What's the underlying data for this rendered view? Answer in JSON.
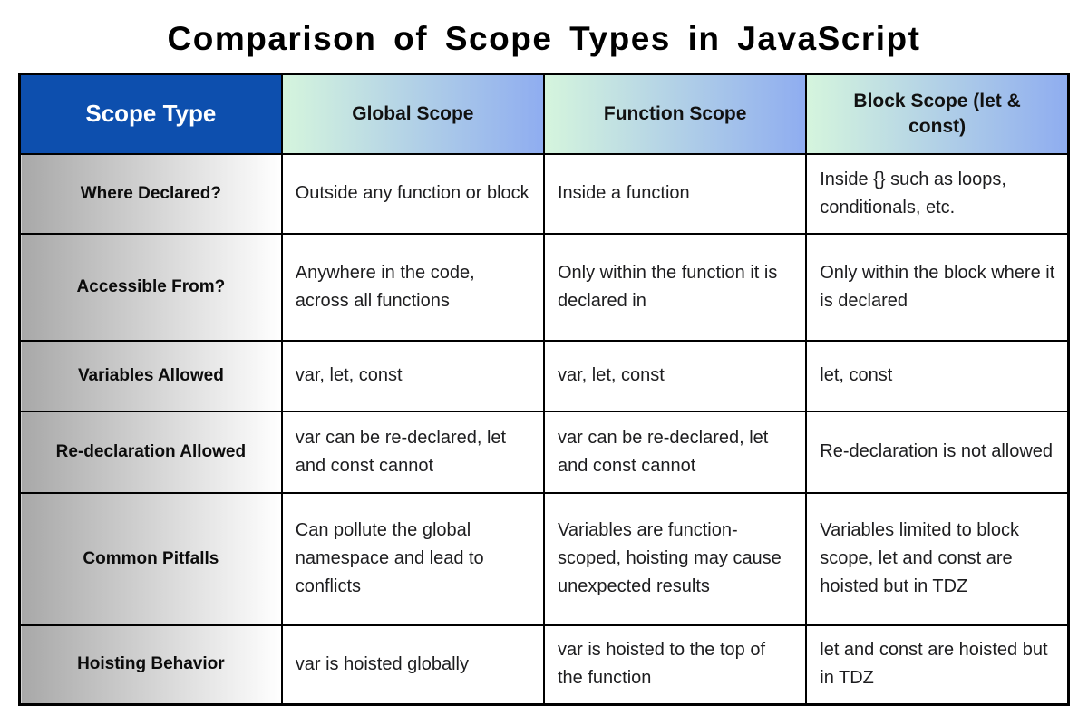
{
  "chart_data": {
    "type": "table",
    "title": "Comparison of Scope Types in JavaScript",
    "corner_header": "Scope Type",
    "columns": [
      "Global Scope",
      "Function Scope",
      "Block Scope (let & const)"
    ],
    "rows": [
      {
        "label": "Where Declared?",
        "values": [
          "Outside any function or block",
          "Inside a function",
          "Inside {} such as loops, conditionals, etc."
        ]
      },
      {
        "label": "Accessible From?",
        "values": [
          "Anywhere in the code, across all functions",
          "Only within the function it is declared in",
          "Only within the block where it is declared"
        ]
      },
      {
        "label": "Variables Allowed",
        "values": [
          "var, let, const",
          "var, let, const",
          "let, const"
        ]
      },
      {
        "label": "Re-declaration Allowed",
        "values": [
          "var can be re-declared, let and const cannot",
          "var can be re-declared, let and const cannot",
          "Re-declaration is not allowed"
        ]
      },
      {
        "label": "Common Pitfalls",
        "values": [
          "Can pollute the global namespace and lead to conflicts",
          "Variables are function-scoped, hoisting may cause unexpected results",
          "Variables limited to block scope, let and const are hoisted but in TDZ"
        ]
      },
      {
        "label": "Hoisting Behavior",
        "values": [
          "var is hoisted globally",
          "var is hoisted to the top of the function",
          "let and const are hoisted but in TDZ"
        ]
      }
    ],
    "layout": {
      "legend": "none",
      "grid": "full-borders"
    }
  },
  "colors": {
    "corner_bg": "#0d4fae",
    "corner_text": "#ffffff",
    "header_gradient_start": "#d5f5dd",
    "header_gradient_end": "#8fadf0",
    "label_gradient_start": "#a8a8a8",
    "label_gradient_end": "#ffffff",
    "border": "#000000",
    "body_text": "#1d1d1f",
    "title_text": "#000000",
    "page_bg": "#ffffff"
  }
}
